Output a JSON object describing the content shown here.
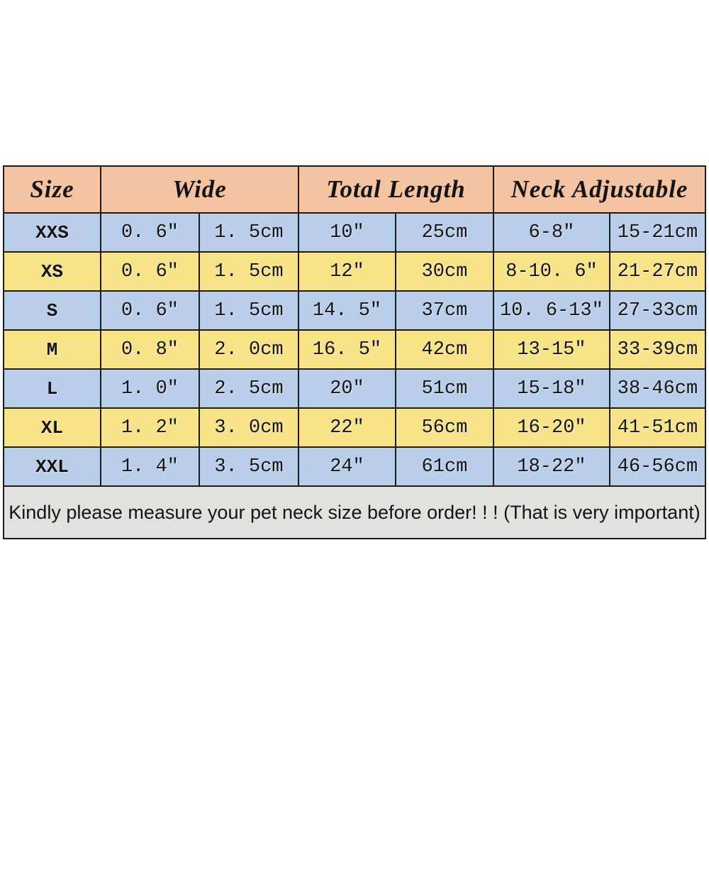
{
  "colors": {
    "header_bg": "#f4c3a1",
    "row_blue": "#b9cfe9",
    "row_yellow": "#f7e488",
    "note_bg": "#e1e1df",
    "note_text": "#b22a22",
    "border": "#1c1c1c",
    "cell_text": "#141414",
    "page_bg": "#ffffff"
  },
  "chart_data": {
    "type": "table",
    "title": "Pet collar size chart",
    "header_groups": [
      {
        "label": "Size",
        "span": 1
      },
      {
        "label": "Wide",
        "span": 2
      },
      {
        "label": "Total Length",
        "span": 2
      },
      {
        "label": "Neck Adjustable",
        "span": 2
      }
    ],
    "sub_columns": [
      "inch",
      "cm",
      "inch",
      "cm",
      "inch",
      "cm"
    ],
    "rows": [
      {
        "size": "XXS",
        "tone": "blue",
        "values": [
          "0. 6″",
          "1. 5cm",
          "10″",
          "25cm",
          "6-8″",
          "15-21cm"
        ]
      },
      {
        "size": "XS",
        "tone": "yellow",
        "values": [
          "0. 6″",
          "1. 5cm",
          "12″",
          "30cm",
          "8-10. 6″",
          "21-27cm"
        ]
      },
      {
        "size": "S",
        "tone": "blue",
        "values": [
          "0. 6″",
          "1. 5cm",
          "14. 5″",
          "37cm",
          "10. 6-13″",
          "27-33cm"
        ]
      },
      {
        "size": "M",
        "tone": "yellow",
        "values": [
          "0. 8″",
          "2. 0cm",
          "16. 5″",
          "42cm",
          "13-15″",
          "33-39cm"
        ]
      },
      {
        "size": "L",
        "tone": "blue",
        "values": [
          "1. 0″",
          "2. 5cm",
          "20″",
          "51cm",
          "15-18″",
          "38-46cm"
        ]
      },
      {
        "size": "XL",
        "tone": "yellow",
        "values": [
          "1. 2″",
          "3. 0cm",
          "22″",
          "56cm",
          "16-20″",
          "41-51cm"
        ]
      },
      {
        "size": "XXL",
        "tone": "blue",
        "values": [
          "1. 4″",
          "3. 5cm",
          "24″",
          "61cm",
          "18-22″",
          "46-56cm"
        ]
      }
    ],
    "note": "Kindly please measure your pet neck size before order! ! ! (That is very important)"
  }
}
